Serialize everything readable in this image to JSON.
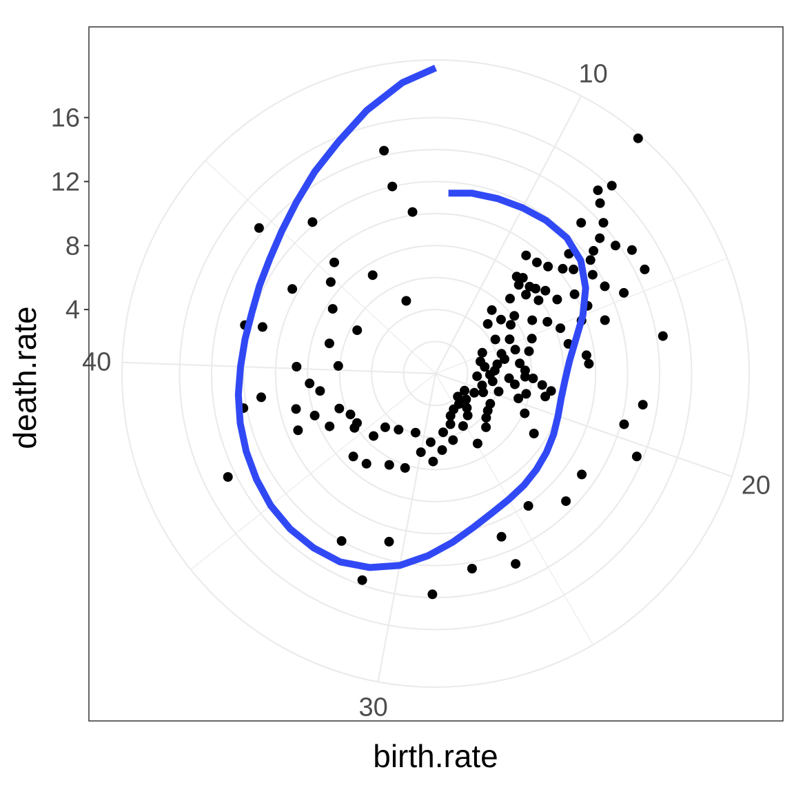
{
  "chart_data": {
    "type": "scatter",
    "coord": "polar",
    "xlabel": "birth.rate",
    "ylabel": "death.rate",
    "theta_var": "birth.rate",
    "r_var": "death.rate",
    "theta_range": [
      6.6,
      50.8
    ],
    "r_range": [
      0,
      19.6
    ],
    "theta_ticks": [
      10,
      20,
      30,
      40
    ],
    "r_ticks": [
      4,
      8,
      12,
      16
    ],
    "grid": true,
    "colors": {
      "points": "#000000",
      "smooth": "#3149F5",
      "grid": "#EBEBEB",
      "border": "#333333",
      "tick_text": "#4D4D4D"
    },
    "points": [
      [
        11.6,
        19.4
      ],
      [
        11.9,
        16.1
      ],
      [
        11.7,
        15.3
      ],
      [
        12.0,
        13.1
      ],
      [
        12.0,
        14.8
      ],
      [
        12.5,
        14.1
      ],
      [
        12.8,
        13.3
      ],
      [
        13.3,
        13.8
      ],
      [
        13.7,
        14.5
      ],
      [
        14.4,
        14.6
      ],
      [
        14.8,
        12.8
      ],
      [
        13.0,
        12.5
      ],
      [
        13.2,
        12.0
      ],
      [
        12.5,
        11.2
      ],
      [
        12.8,
        10.3
      ],
      [
        12.3,
        9.7
      ],
      [
        13.1,
        10.8
      ],
      [
        13.7,
        11.6
      ],
      [
        14.3,
        11.9
      ],
      [
        11.8,
        9.4
      ],
      [
        11.2,
        9.3
      ],
      [
        11.8,
        8.1
      ],
      [
        12.4,
        8.0
      ],
      [
        13.1,
        8.6
      ],
      [
        14.0,
        10.0
      ],
      [
        11.5,
        7.9
      ],
      [
        11.9,
        7.6
      ],
      [
        12.7,
        8.2
      ],
      [
        12.1,
        6.6
      ],
      [
        12.6,
        7.5
      ],
      [
        13.3,
        7.9
      ],
      [
        13.8,
        8.9
      ],
      [
        14.7,
        10.4
      ],
      [
        15.5,
        11.1
      ],
      [
        15.2,
        9.7
      ],
      [
        13.2,
        6.1
      ],
      [
        14.1,
        6.9
      ],
      [
        14.6,
        7.7
      ],
      [
        15.2,
        8.3
      ],
      [
        16.1,
        8.5
      ],
      [
        16.8,
        9.5
      ],
      [
        17.2,
        9.6
      ],
      [
        11.7,
        5.3
      ],
      [
        12.3,
        4.5
      ],
      [
        12.8,
        5.3
      ],
      [
        13.6,
        5.6
      ],
      [
        14.0,
        4.3
      ],
      [
        14.6,
        5.1
      ],
      [
        15.2,
        6.4
      ],
      [
        15.6,
        5.2
      ],
      [
        16.0,
        6.0
      ],
      [
        14.7,
        3.2
      ],
      [
        15.6,
        4.3
      ],
      [
        16.2,
        4.4
      ],
      [
        16.8,
        5.3
      ],
      [
        17.4,
        5.6
      ],
      [
        18.0,
        6.1
      ],
      [
        18.7,
        7.3
      ],
      [
        19.1,
        7.0
      ],
      [
        18.4,
        6.7
      ],
      [
        15.8,
        2.9
      ],
      [
        16.6,
        3.9
      ],
      [
        17.3,
        3.7
      ],
      [
        18.1,
        4.6
      ],
      [
        18.6,
        5.0
      ],
      [
        19.2,
        5.8
      ],
      [
        17.9,
        5.6
      ],
      [
        16.7,
        3.1
      ],
      [
        17.8,
        3.4
      ],
      [
        18.6,
        3.6
      ],
      [
        19.6,
        4.1
      ],
      [
        19.7,
        5.4
      ],
      [
        20.6,
        6.1
      ],
      [
        21.5,
        7.2
      ],
      [
        18.1,
        2.6
      ],
      [
        19.4,
        3.0
      ],
      [
        20.3,
        3.2
      ],
      [
        21.2,
        3.9
      ],
      [
        20.9,
        2.7
      ],
      [
        22.0,
        4.0
      ],
      [
        22.7,
        4.2
      ],
      [
        23.4,
        4.6
      ],
      [
        24.9,
        5.1
      ],
      [
        21.4,
        2.1
      ],
      [
        22.6,
        2.5
      ],
      [
        23.5,
        2.9
      ],
      [
        24.1,
        3.3
      ],
      [
        25.3,
        3.7
      ],
      [
        26.9,
        4.3
      ],
      [
        28.1,
        4.8
      ],
      [
        28.9,
        5.5
      ],
      [
        23.3,
        2.0
      ],
      [
        24.1,
        2.4
      ],
      [
        25.4,
        2.5
      ],
      [
        26.3,
        2.8
      ],
      [
        26.7,
        3.3
      ],
      [
        27.8,
        3.7
      ],
      [
        29.2,
        4.3
      ],
      [
        30.0,
        5.0
      ],
      [
        30.9,
        6.2
      ],
      [
        32.0,
        6.4
      ],
      [
        33.3,
        7.1
      ],
      [
        34.2,
        7.3
      ],
      [
        35.6,
        6.1
      ],
      [
        36.5,
        7.4
      ],
      [
        37.4,
        8.0
      ],
      [
        37.0,
        9.3
      ],
      [
        38.8,
        11.0
      ],
      [
        31.0,
        3.9
      ],
      [
        32.8,
        4.2
      ],
      [
        34.0,
        4.6
      ],
      [
        34.2,
        5.5
      ],
      [
        35.8,
        5.8
      ],
      [
        36.6,
        5.9
      ],
      [
        37.3,
        6.4
      ],
      [
        38.0,
        9.0
      ],
      [
        38.7,
        7.3
      ],
      [
        39.2,
        7.9
      ],
      [
        40.3,
        6.1
      ],
      [
        40.1,
        8.7
      ],
      [
        41.7,
        6.9
      ],
      [
        43.7,
        7.6
      ],
      [
        43.3,
        5.6
      ],
      [
        41.6,
        11.2
      ],
      [
        43.5,
        10.4
      ],
      [
        44.8,
        8.7
      ],
      [
        46.0,
        12.2
      ],
      [
        45.6,
        9.4
      ],
      [
        46.8,
        7.3
      ],
      [
        48.1,
        4.9
      ],
      [
        49.2,
        12.0
      ],
      [
        49.8,
        10.2
      ],
      [
        41.5,
        12.3
      ],
      [
        44.6,
        14.3
      ],
      [
        49.2,
        14.3
      ],
      [
        36.5,
        14.5
      ],
      [
        38.5,
        12.2
      ],
      [
        32.3,
        12.0
      ],
      [
        30.6,
        10.9
      ],
      [
        31.1,
        13.7
      ],
      [
        28.8,
        13.8
      ],
      [
        16.5,
        14.4
      ],
      [
        18.7,
        13.1
      ],
      [
        19.5,
        12.2
      ],
      [
        20.4,
        13.6
      ],
      [
        21.9,
        11.1
      ],
      [
        23.1,
        11.4
      ],
      [
        24.4,
        10.1
      ],
      [
        26.0,
        11.0
      ],
      [
        25.9,
        12.9
      ],
      [
        27.4,
        12.4
      ]
    ],
    "smooth_line": [
      [
        7.1,
        11.3
      ],
      [
        8.0,
        11.5
      ],
      [
        9.0,
        11.6
      ],
      [
        10.0,
        11.7
      ],
      [
        11.0,
        11.8
      ],
      [
        12.0,
        11.8
      ],
      [
        13.0,
        11.5
      ],
      [
        14.0,
        10.8
      ],
      [
        15.0,
        9.9
      ],
      [
        16.0,
        9.0
      ],
      [
        17.0,
        8.4
      ],
      [
        18.0,
        8.1
      ],
      [
        19.0,
        8.0
      ],
      [
        20.0,
        8.1
      ],
      [
        21.0,
        8.3
      ],
      [
        22.0,
        8.5
      ],
      [
        23.0,
        8.7
      ],
      [
        24.0,
        8.9
      ],
      [
        25.0,
        9.1
      ],
      [
        26.0,
        9.4
      ],
      [
        27.0,
        9.9
      ],
      [
        28.0,
        10.6
      ],
      [
        29.0,
        11.4
      ],
      [
        30.0,
        12.2
      ],
      [
        31.0,
        12.8
      ],
      [
        32.0,
        13.2
      ],
      [
        33.0,
        13.3
      ],
      [
        34.0,
        13.3
      ],
      [
        35.0,
        13.2
      ],
      [
        36.0,
        13.0
      ],
      [
        37.0,
        12.8
      ],
      [
        38.0,
        12.6
      ],
      [
        39.0,
        12.4
      ],
      [
        40.0,
        12.2
      ],
      [
        41.0,
        12.1
      ],
      [
        42.0,
        12.1
      ],
      [
        43.0,
        12.3
      ],
      [
        44.0,
        12.6
      ],
      [
        45.0,
        13.1
      ],
      [
        46.0,
        13.8
      ],
      [
        47.0,
        14.7
      ],
      [
        48.0,
        15.7
      ],
      [
        49.0,
        17.0
      ],
      [
        50.0,
        18.3
      ],
      [
        50.8,
        19.1
      ]
    ]
  }
}
